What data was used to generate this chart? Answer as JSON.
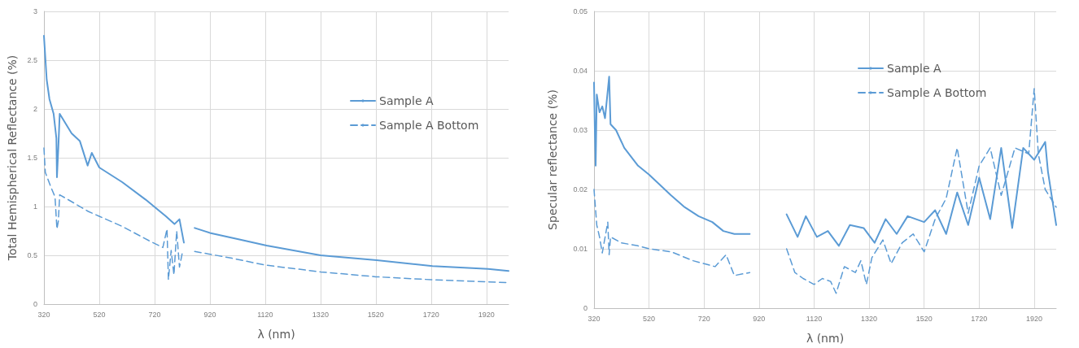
{
  "chart_data": [
    {
      "type": "line",
      "xlabel": "λ (nm)",
      "ylabel": "Total Hemispherical Reflectance (%)",
      "xlim": [
        320,
        2000
      ],
      "xticks": [
        320,
        520,
        720,
        920,
        1120,
        1320,
        1520,
        1720,
        1920
      ],
      "ylim": [
        0,
        3
      ],
      "yticks": [
        0,
        0.5,
        1,
        1.5,
        2,
        2.5,
        3
      ],
      "grid": true,
      "legend": "right",
      "marker": "none",
      "series": [
        {
          "name": "Sample A",
          "color": "#5b9bd5",
          "line_style": "solid",
          "x": [
            320,
            330,
            340,
            355,
            365,
            367,
            372,
            377,
            420,
            450,
            478,
            493,
            520,
            603,
            688,
            761,
            792,
            810,
            826,
            845,
            865,
            920,
            1030,
            1125,
            1320,
            1523,
            1725,
            1926,
            2000
          ],
          "values": [
            2.75,
            2.3,
            2.1,
            1.95,
            1.7,
            1.3,
            1.6,
            1.95,
            1.75,
            1.67,
            1.42,
            1.55,
            1.4,
            1.25,
            1.07,
            0.9,
            0.82,
            0.87,
            0.63,
            null,
            0.78,
            0.73,
            0.66,
            0.6,
            0.5,
            0.45,
            0.39,
            0.36,
            0.34
          ]
        },
        {
          "name": "Sample A Bottom",
          "color": "#5b9bd5",
          "line_style": "dashed",
          "x": [
            320,
            325,
            345,
            360,
            367,
            372,
            377,
            420,
            480,
            520,
            600,
            700,
            750,
            765,
            770,
            780,
            790,
            800,
            810,
            820,
            826,
            845,
            865,
            1000,
            1120,
            1320,
            1520,
            1720,
            2000
          ],
          "values": [
            1.6,
            1.35,
            1.2,
            1.1,
            0.77,
            0.85,
            1.12,
            1.05,
            0.95,
            0.9,
            0.8,
            0.65,
            0.58,
            0.77,
            0.25,
            0.55,
            0.3,
            0.75,
            0.38,
            0.52,
            0.5,
            null,
            0.54,
            0.47,
            0.4,
            0.33,
            0.28,
            0.25,
            0.22
          ]
        }
      ]
    },
    {
      "type": "line",
      "xlabel": "λ (nm)",
      "ylabel": "Specular reflectance (%)",
      "xlim": [
        320,
        2000
      ],
      "xticks": [
        320,
        520,
        720,
        920,
        1120,
        1320,
        1520,
        1720,
        1920
      ],
      "ylim": [
        0,
        0.05
      ],
      "yticks": [
        0,
        0.01,
        0.02,
        0.03,
        0.04,
        0.05
      ],
      "grid": true,
      "legend": "right",
      "marker": "none",
      "series": [
        {
          "name": "Sample A",
          "color": "#5b9bd5",
          "line_style": "solid",
          "x": [
            320,
            323,
            326,
            330,
            340,
            350,
            360,
            375,
            380,
            400,
            430,
            480,
            520,
            600,
            650,
            700,
            750,
            790,
            830,
            886,
            950,
            1020,
            1060,
            1090,
            1130,
            1170,
            1210,
            1250,
            1300,
            1340,
            1380,
            1420,
            1460,
            1520,
            1560,
            1600,
            1640,
            1680,
            1720,
            1760,
            1800,
            1840,
            1880,
            1920,
            1960,
            1970,
            2000
          ],
          "values": [
            0.038,
            0.03,
            0.024,
            0.036,
            0.033,
            0.034,
            0.032,
            0.039,
            0.031,
            0.03,
            0.027,
            0.024,
            0.0225,
            0.019,
            0.017,
            0.0155,
            0.0145,
            0.013,
            0.0125,
            0.0125,
            null,
            0.0158,
            0.012,
            0.0155,
            0.012,
            0.013,
            0.0105,
            0.014,
            0.0135,
            0.011,
            0.015,
            0.0125,
            0.0155,
            0.0145,
            0.0165,
            0.0125,
            0.0195,
            0.014,
            0.022,
            0.015,
            0.027,
            0.0135,
            0.027,
            0.025,
            0.028,
            0.023,
            0.014
          ]
        },
        {
          "name": "Sample A Bottom",
          "color": "#5b9bd5",
          "line_style": "dashed",
          "x": [
            320,
            330,
            340,
            350,
            370,
            375,
            380,
            420,
            480,
            520,
            600,
            680,
            720,
            760,
            800,
            830,
            886,
            950,
            1020,
            1050,
            1080,
            1120,
            1150,
            1180,
            1200,
            1230,
            1270,
            1290,
            1310,
            1330,
            1370,
            1400,
            1440,
            1480,
            1520,
            1560,
            1600,
            1640,
            1680,
            1720,
            1760,
            1800,
            1850,
            1900,
            1920,
            1935,
            1960,
            2000
          ],
          "values": [
            0.02,
            0.014,
            0.012,
            0.0093,
            0.0145,
            0.009,
            0.012,
            0.011,
            0.0105,
            0.01,
            0.0095,
            0.008,
            0.0075,
            0.007,
            0.009,
            0.0055,
            0.006,
            null,
            0.01,
            0.006,
            0.005,
            0.004,
            0.005,
            0.0045,
            0.0025,
            0.007,
            0.006,
            0.008,
            0.004,
            0.0085,
            0.0115,
            0.0075,
            0.011,
            0.0125,
            0.0095,
            0.015,
            0.0185,
            0.027,
            0.016,
            0.024,
            0.027,
            0.019,
            0.027,
            0.026,
            0.037,
            0.026,
            0.02,
            0.017
          ]
        }
      ]
    }
  ]
}
